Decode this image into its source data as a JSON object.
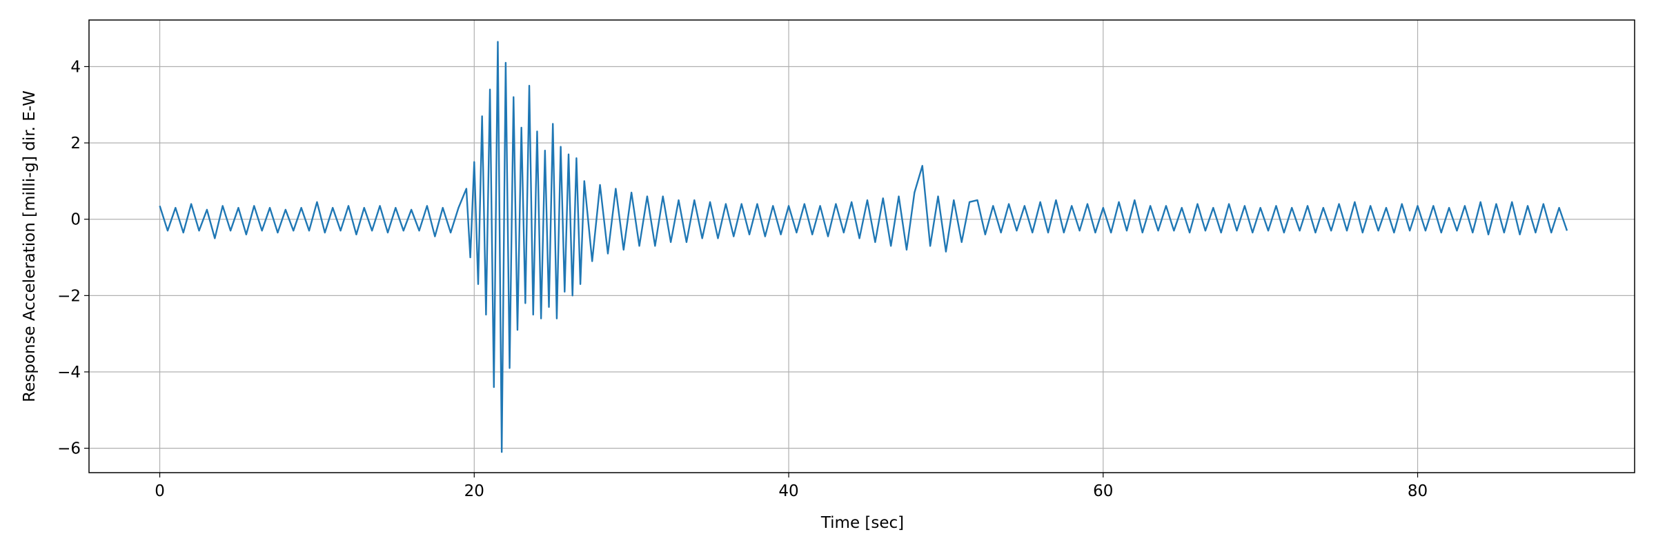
{
  "chart_data": {
    "type": "line",
    "xlabel": "Time [sec]",
    "ylabel": "Response Acceleration [milli-g] dir. E-W",
    "xlim": [
      -4.5,
      93.8
    ],
    "ylim": [
      -6.64,
      5.22
    ],
    "xticks": [
      0,
      20,
      40,
      60,
      80
    ],
    "yticks": [
      {
        "value": -6,
        "label": "−6"
      },
      {
        "value": -4,
        "label": "−4"
      },
      {
        "value": -2,
        "label": "−2"
      },
      0,
      2,
      4
    ],
    "grid": true,
    "x": [
      0,
      0.5,
      1,
      1.5,
      2,
      2.5,
      3,
      3.5,
      4,
      4.5,
      5,
      5.5,
      6,
      6.5,
      7,
      7.5,
      8,
      8.5,
      9,
      9.5,
      10,
      10.5,
      11,
      11.5,
      12,
      12.5,
      13,
      13.5,
      14,
      14.5,
      15,
      15.5,
      16,
      16.5,
      17,
      17.5,
      18,
      18.5,
      19,
      19.5,
      19.75,
      20,
      20.25,
      20.5,
      20.75,
      21,
      21.25,
      21.5,
      21.75,
      22,
      22.25,
      22.5,
      22.75,
      23,
      23.25,
      23.5,
      23.75,
      24,
      24.25,
      24.5,
      24.75,
      25,
      25.25,
      25.5,
      25.75,
      26,
      26.25,
      26.5,
      26.75,
      27,
      27.5,
      28,
      28.5,
      29,
      29.5,
      30,
      30.5,
      31,
      31.5,
      32,
      32.5,
      33,
      33.5,
      34,
      34.5,
      35,
      35.5,
      36,
      36.5,
      37,
      37.5,
      38,
      38.5,
      39,
      39.5,
      40,
      40.5,
      41,
      41.5,
      42,
      42.5,
      43,
      43.5,
      44,
      44.5,
      45,
      45.5,
      46,
      46.5,
      47,
      47.5,
      48,
      48.5,
      49,
      49.5,
      50,
      50.5,
      51,
      51.5,
      52,
      52.5,
      53,
      53.5,
      54,
      54.5,
      55,
      55.5,
      56,
      56.5,
      57,
      57.5,
      58,
      58.5,
      59,
      59.5,
      60,
      60.5,
      61,
      61.5,
      62,
      62.5,
      63,
      63.5,
      64,
      64.5,
      65,
      65.5,
      66,
      66.5,
      67,
      67.5,
      68,
      68.5,
      69,
      69.5,
      70,
      70.5,
      71,
      71.5,
      72,
      72.5,
      73,
      73.5,
      74,
      74.5,
      75,
      75.5,
      76,
      76.5,
      77,
      77.5,
      78,
      78.5,
      79,
      79.5,
      80,
      80.5,
      81,
      81.5,
      82,
      82.5,
      83,
      83.5,
      84,
      84.5,
      85,
      85.5,
      86,
      86.5,
      87,
      87.5,
      88,
      88.5,
      89,
      89.5
    ],
    "series": [
      {
        "color": "#1f77b4",
        "values": [
          0.35,
          -0.3,
          0.3,
          -0.35,
          0.4,
          -0.3,
          0.25,
          -0.5,
          0.35,
          -0.3,
          0.3,
          -0.4,
          0.35,
          -0.3,
          0.3,
          -0.35,
          0.25,
          -0.3,
          0.3,
          -0.3,
          0.45,
          -0.35,
          0.3,
          -0.3,
          0.35,
          -0.4,
          0.3,
          -0.3,
          0.35,
          -0.35,
          0.3,
          -0.3,
          0.25,
          -0.3,
          0.35,
          -0.45,
          0.3,
          -0.35,
          0.3,
          0.8,
          -1.0,
          1.5,
          -1.7,
          2.7,
          -2.5,
          3.4,
          -4.4,
          4.65,
          -6.1,
          4.1,
          -3.9,
          3.2,
          -2.9,
          2.4,
          -2.2,
          3.5,
          -2.5,
          2.3,
          -2.6,
          1.8,
          -2.3,
          2.5,
          -2.6,
          1.9,
          -1.9,
          1.7,
          -2.0,
          1.6,
          -1.7,
          1.0,
          -1.1,
          0.9,
          -0.9,
          0.8,
          -0.8,
          0.7,
          -0.7,
          0.6,
          -0.7,
          0.6,
          -0.6,
          0.5,
          -0.6,
          0.5,
          -0.5,
          0.45,
          -0.5,
          0.4,
          -0.45,
          0.4,
          -0.4,
          0.4,
          -0.45,
          0.35,
          -0.4,
          0.35,
          -0.35,
          0.4,
          -0.4,
          0.35,
          -0.45,
          0.4,
          -0.35,
          0.45,
          -0.5,
          0.5,
          -0.6,
          0.55,
          -0.7,
          0.6,
          -0.8,
          0.7,
          1.4,
          -0.7,
          0.6,
          -0.85,
          0.5,
          -0.6,
          0.45,
          0.5,
          -0.4,
          0.35,
          -0.35,
          0.4,
          -0.3,
          0.35,
          -0.35,
          0.45,
          -0.35,
          0.5,
          -0.35,
          0.35,
          -0.3,
          0.4,
          -0.35,
          0.3,
          -0.35,
          0.45,
          -0.3,
          0.5,
          -0.35,
          0.35,
          -0.3,
          0.35,
          -0.3,
          0.3,
          -0.35,
          0.4,
          -0.3,
          0.3,
          -0.35,
          0.4,
          -0.3,
          0.35,
          -0.35,
          0.3,
          -0.3,
          0.35,
          -0.35,
          0.3,
          -0.3,
          0.35,
          -0.35,
          0.3,
          -0.3,
          0.4,
          -0.3,
          0.45,
          -0.35,
          0.35,
          -0.3,
          0.3,
          -0.35,
          0.4,
          -0.3,
          0.35,
          -0.3,
          0.35,
          -0.35,
          0.3,
          -0.3,
          0.35,
          -0.35,
          0.45,
          -0.4,
          0.4,
          -0.35,
          0.45,
          -0.4,
          0.35,
          -0.35,
          0.4,
          -0.35,
          0.3,
          -0.3
        ]
      }
    ]
  }
}
